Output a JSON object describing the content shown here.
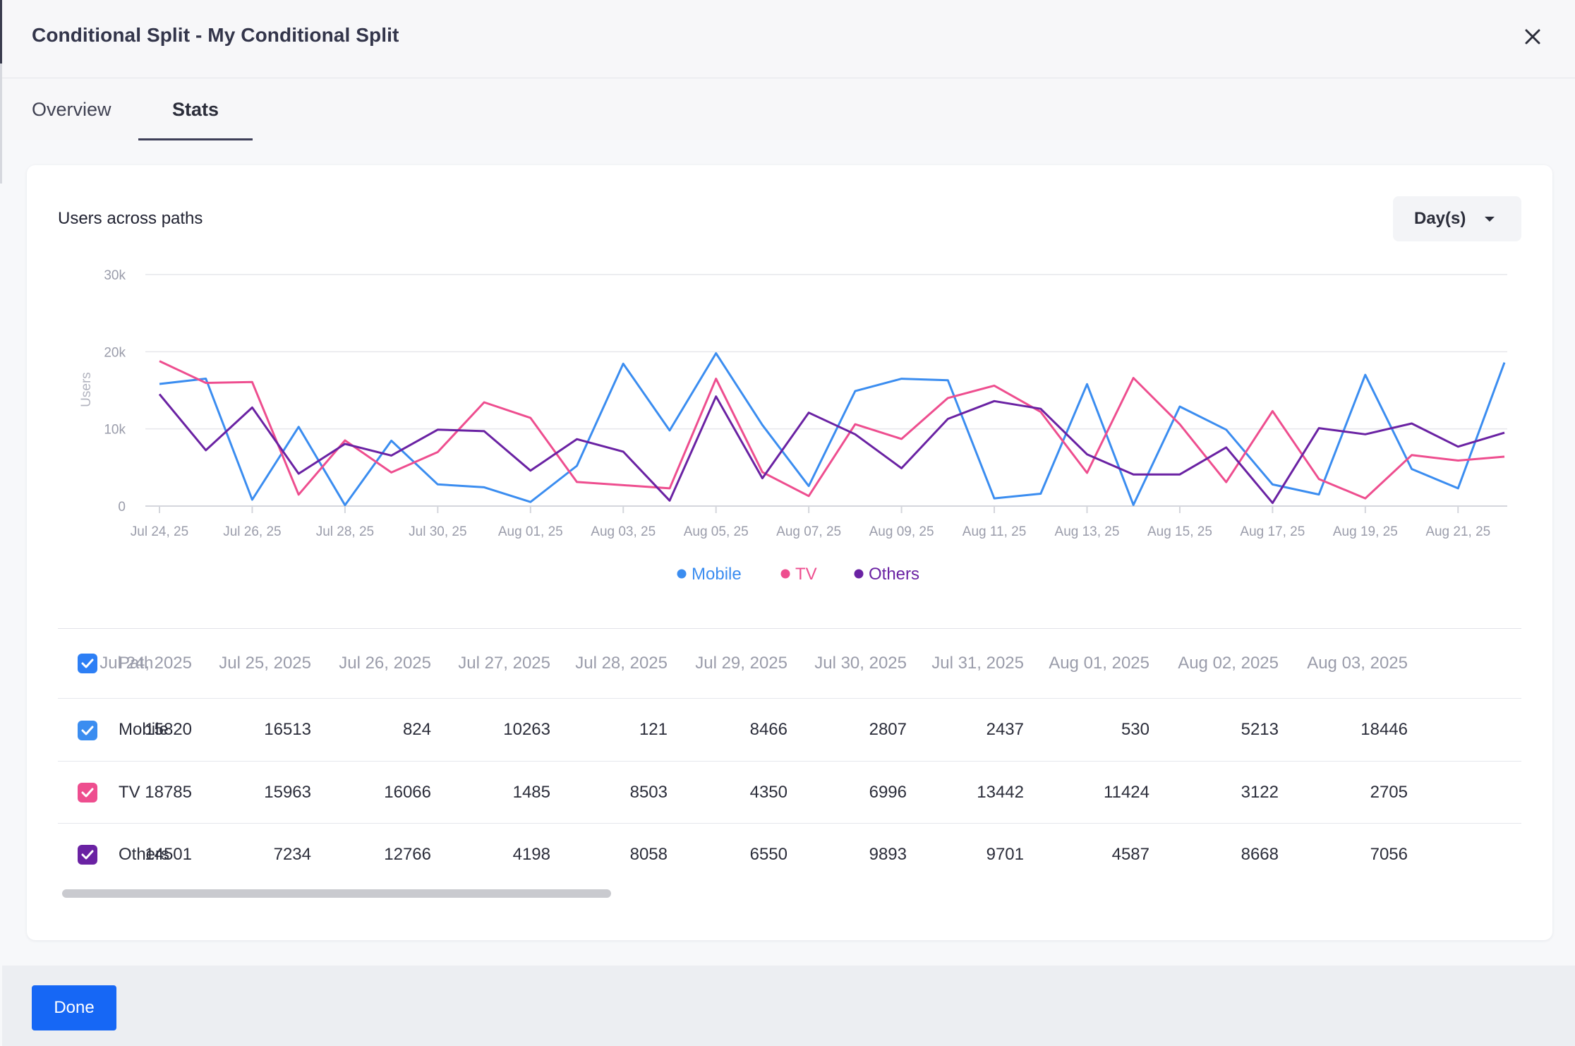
{
  "dialog": {
    "title": "Conditional Split - My Conditional Split",
    "close_label": "×"
  },
  "tabs": [
    {
      "label": "Overview",
      "active": false
    },
    {
      "label": "Stats",
      "active": true
    }
  ],
  "card": {
    "title": "Users across paths",
    "period_select": "Day(s)"
  },
  "chart_data": {
    "type": "line",
    "title": "Users across paths",
    "ylabel": "Users",
    "xlabel": "",
    "ylim": [
      0,
      30000
    ],
    "y_ticks": [
      "0",
      "10k",
      "20k",
      "30k"
    ],
    "grid": true,
    "legend": "bottom-center",
    "x_tick_labels": [
      "Jul 24, 25",
      "Jul 26, 25",
      "Jul 28, 25",
      "Jul 30, 25",
      "Aug 01, 25",
      "Aug 03, 25",
      "Aug 05, 25",
      "Aug 07, 25",
      "Aug 09, 25",
      "Aug 11, 25",
      "Aug 13, 25",
      "Aug 15, 25",
      "Aug 17, 25",
      "Aug 19, 25",
      "Aug 21, 25"
    ],
    "x": [
      "2025-07-24",
      "2025-07-25",
      "2025-07-26",
      "2025-07-27",
      "2025-07-28",
      "2025-07-29",
      "2025-07-30",
      "2025-07-31",
      "2025-08-01",
      "2025-08-02",
      "2025-08-03",
      "2025-08-04",
      "2025-08-05",
      "2025-08-06",
      "2025-08-07",
      "2025-08-08",
      "2025-08-09",
      "2025-08-10",
      "2025-08-11",
      "2025-08-12",
      "2025-08-13",
      "2025-08-14",
      "2025-08-15",
      "2025-08-16",
      "2025-08-17",
      "2025-08-18",
      "2025-08-19",
      "2025-08-20",
      "2025-08-21",
      "2025-08-22"
    ],
    "series": [
      {
        "name": "Mobile",
        "color": "#3b8df0",
        "values": [
          15820,
          16513,
          824,
          10263,
          121,
          8466,
          2807,
          2437,
          530,
          5213,
          18446,
          9800,
          19800,
          10500,
          2600,
          14900,
          16500,
          16300,
          1000,
          1600,
          15800,
          150,
          12900,
          9900,
          2800,
          1500,
          17000,
          4800,
          2300,
          18600
        ]
      },
      {
        "name": "TV",
        "color": "#ee4e8f",
        "values": [
          18785,
          15963,
          16066,
          1485,
          8503,
          4350,
          6996,
          13442,
          11424,
          3122,
          2705,
          2300,
          16500,
          4400,
          1300,
          10600,
          8700,
          14000,
          15600,
          12200,
          4300,
          16600,
          10600,
          3100,
          12300,
          3500,
          1000,
          6600,
          5900,
          6400
        ]
      },
      {
        "name": "Others",
        "color": "#6a22a3",
        "values": [
          14501,
          7234,
          12766,
          4198,
          8058,
          6550,
          9893,
          9701,
          4587,
          8668,
          7056,
          700,
          14200,
          3600,
          12100,
          9300,
          4900,
          11300,
          13600,
          12600,
          6700,
          4100,
          4100,
          7600,
          400,
          10100,
          9300,
          10700,
          7700,
          9500
        ]
      }
    ]
  },
  "table": {
    "path_header": "Path",
    "date_headers": [
      "Jul 24, 2025",
      "Jul 25, 2025",
      "Jul 26, 2025",
      "Jul 27, 2025",
      "Jul 28, 2025",
      "Jul 29, 2025",
      "Jul 30, 2025",
      "Jul 31, 2025",
      "Aug 01, 2025",
      "Aug 02, 2025",
      "Aug 03, 2025"
    ],
    "rows": [
      {
        "path": "Mobile",
        "color": "#3b8df0",
        "values": [
          "15820",
          "16513",
          "824",
          "10263",
          "121",
          "8466",
          "2807",
          "2437",
          "530",
          "5213",
          "18446"
        ]
      },
      {
        "path": "TV",
        "color": "#ee4e8f",
        "values": [
          "18785",
          "15963",
          "16066",
          "1485",
          "8503",
          "4350",
          "6996",
          "13442",
          "11424",
          "3122",
          "2705"
        ]
      },
      {
        "path": "Others",
        "color": "#6a22a3",
        "values": [
          "14501",
          "7234",
          "12766",
          "4198",
          "8058",
          "6550",
          "9893",
          "9701",
          "4587",
          "8668",
          "7056"
        ]
      }
    ]
  },
  "footer": {
    "done_label": "Done"
  }
}
